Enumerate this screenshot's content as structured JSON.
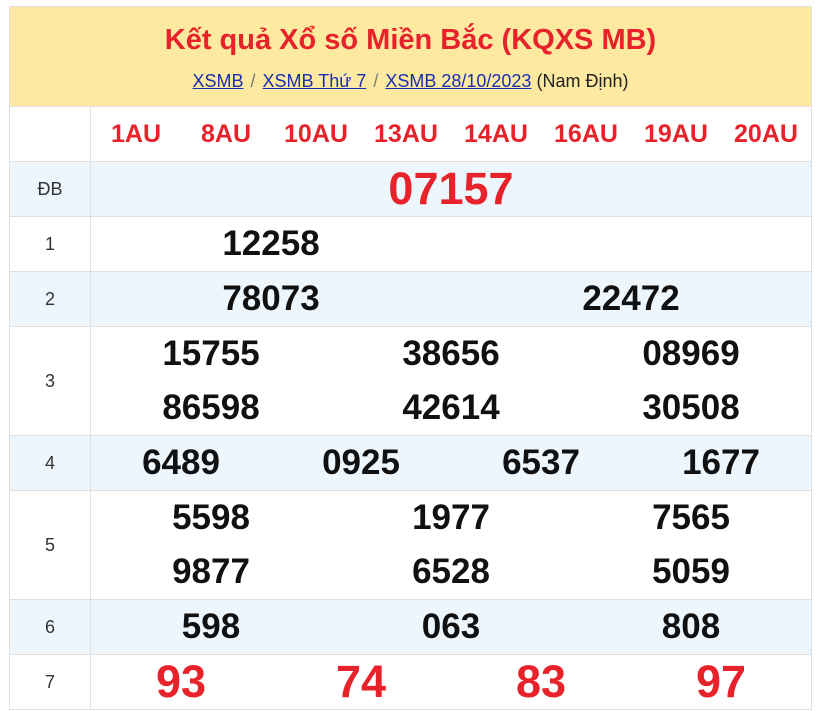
{
  "header": {
    "title": "Kết quả Xổ số Miền Bắc (KQXS MB)",
    "breadcrumbs": [
      {
        "label": "XSMB"
      },
      {
        "label": "XSMB Thứ 7"
      },
      {
        "label": "XSMB 28/10/2023"
      }
    ],
    "province": "(Nam Định)"
  },
  "codes": [
    "1AU",
    "8AU",
    "10AU",
    "13AU",
    "14AU",
    "16AU",
    "19AU",
    "20AU"
  ],
  "prizes": [
    {
      "label": "ĐB",
      "numbers": [
        "07157"
      ]
    },
    {
      "label": "1",
      "numbers": [
        "12258"
      ]
    },
    {
      "label": "2",
      "numbers": [
        "78073",
        "22472"
      ]
    },
    {
      "label": "3",
      "numbers": [
        "15755",
        "38656",
        "08969",
        "86598",
        "42614",
        "30508"
      ]
    },
    {
      "label": "4",
      "numbers": [
        "6489",
        "0925",
        "6537",
        "1677"
      ]
    },
    {
      "label": "5",
      "numbers": [
        "5598",
        "1977",
        "7565",
        "9877",
        "6528",
        "5059"
      ]
    },
    {
      "label": "6",
      "numbers": [
        "598",
        "063",
        "808"
      ]
    },
    {
      "label": "7",
      "numbers": [
        "93",
        "74",
        "83",
        "97"
      ]
    }
  ],
  "colors": {
    "accent": "#e8222a",
    "header_bg": "#fde9a0",
    "row_alt": "#eef6fd",
    "link": "#1a2fb0"
  }
}
